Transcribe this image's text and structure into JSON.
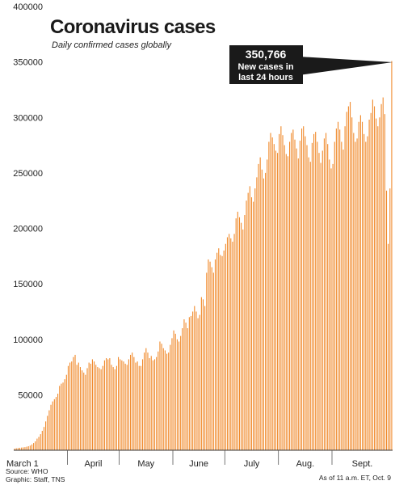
{
  "chart_data": {
    "type": "bar",
    "title": "Coronavirus cases",
    "subtitle": "Daily confirmed cases globally",
    "ylim": [
      0,
      400000
    ],
    "yticks": [
      50000,
      100000,
      150000,
      200000,
      250000,
      300000,
      350000,
      400000
    ],
    "ytick_labels": [
      "50000",
      "100000",
      "150000",
      "200000",
      "250000",
      "300000",
      "350000",
      "400000"
    ],
    "xtick_labels": [
      "March 1",
      "April",
      "May",
      "June",
      "July",
      "Aug.",
      "Sept."
    ],
    "xtick_days": [
      0,
      31,
      61,
      92,
      122,
      153,
      184
    ],
    "grid": false,
    "bar_color": "#f08a2c",
    "callout": {
      "value": "350,766",
      "line1": "New cases in",
      "line2": "last 24 hours",
      "box_color": "#1a1a1a"
    },
    "source": "Source: WHO",
    "graphic": "Graphic: Staff, TNS",
    "as_of": "As of 11 a.m. ET, Oct. 9",
    "values": [
      1500,
      1800,
      2000,
      2200,
      2400,
      2600,
      2800,
      3200,
      3600,
      4200,
      5200,
      6500,
      8000,
      10500,
      12000,
      14500,
      17500,
      21000,
      26000,
      31000,
      36000,
      41000,
      44000,
      46000,
      48000,
      51000,
      58000,
      60000,
      61000,
      64000,
      68000,
      76000,
      79000,
      80000,
      84000,
      86000,
      77000,
      79000,
      75000,
      72000,
      70000,
      68000,
      74000,
      79000,
      78000,
      82000,
      80000,
      77000,
      75000,
      74000,
      73000,
      76000,
      81000,
      83000,
      82000,
      83000,
      77000,
      75000,
      73000,
      76000,
      84000,
      82000,
      81000,
      80000,
      78000,
      77000,
      82000,
      86000,
      88000,
      84000,
      79000,
      80000,
      76000,
      76000,
      82000,
      88000,
      92000,
      88000,
      83000,
      85000,
      81000,
      82000,
      84000,
      89000,
      98000,
      96000,
      92000,
      90000,
      87000,
      88000,
      95000,
      101000,
      108000,
      105000,
      100000,
      98000,
      103000,
      110000,
      118000,
      115000,
      110000,
      120000,
      121000,
      125000,
      130000,
      125000,
      119000,
      122000,
      138000,
      136000,
      130000,
      160000,
      172000,
      170000,
      165000,
      160000,
      172000,
      178000,
      182000,
      176000,
      175000,
      180000,
      186000,
      192000,
      195000,
      191000,
      188000,
      195000,
      209000,
      215000,
      210000,
      205000,
      199000,
      212000,
      225000,
      232000,
      238000,
      228000,
      224000,
      236000,
      246000,
      258000,
      264000,
      253000,
      245000,
      250000,
      262000,
      278000,
      286000,
      282000,
      276000,
      270000,
      268000,
      285000,
      292000,
      284000,
      275000,
      267000,
      265000,
      278000,
      286000,
      289000,
      280000,
      272000,
      263000,
      279000,
      290000,
      292000,
      283000,
      275000,
      264000,
      260000,
      277000,
      285000,
      287000,
      278000,
      268000,
      259000,
      270000,
      281000,
      286000,
      276000,
      262000,
      254000,
      258000,
      278000,
      290000,
      296000,
      289000,
      278000,
      271000,
      292000,
      305000,
      310000,
      314000,
      300000,
      286000,
      278000,
      281000,
      296000,
      302000,
      296000,
      285000,
      278000,
      283000,
      298000,
      304000,
      316000,
      310000,
      299000,
      292000,
      300000,
      312000,
      318000,
      303000,
      234000,
      186000,
      236000,
      350766
    ]
  }
}
